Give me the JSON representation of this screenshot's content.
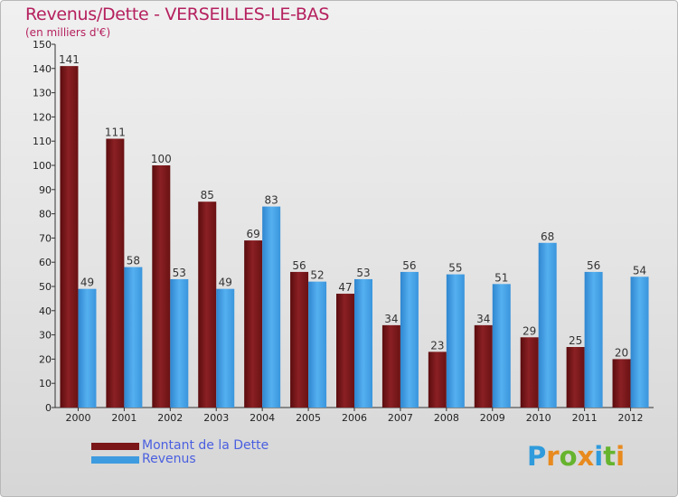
{
  "chart_data": {
    "type": "bar",
    "title": "Revenus/Dette - VERSEILLES-LE-BAS",
    "subtitle": "(en milliers d'€)",
    "categories": [
      "2000",
      "2001",
      "2002",
      "2003",
      "2004",
      "2005",
      "2006",
      "2007",
      "2008",
      "2009",
      "2010",
      "2011",
      "2012"
    ],
    "series": [
      {
        "name": "Montant de la Dette",
        "color": "#7a1518",
        "values": [
          141,
          111,
          100,
          85,
          69,
          56,
          47,
          34,
          23,
          34,
          29,
          25,
          20
        ]
      },
      {
        "name": "Revenus",
        "color": "#3d9be0",
        "values": [
          49,
          58,
          53,
          49,
          83,
          52,
          53,
          56,
          55,
          51,
          68,
          56,
          54
        ]
      }
    ],
    "ylim": [
      0,
      150
    ],
    "yticks": [
      0,
      10,
      20,
      30,
      40,
      50,
      60,
      70,
      80,
      90,
      100,
      110,
      120,
      130,
      140,
      150
    ],
    "grid": false,
    "legend_placement": "bottom-left",
    "data_labels": true
  },
  "logo": {
    "text": "Proxiti",
    "letter_colors": [
      "#2f9bdc",
      "#e88a1e",
      "#66b42e",
      "#e88a1e",
      "#2f9bdc",
      "#66b42e",
      "#e88a1e"
    ]
  }
}
